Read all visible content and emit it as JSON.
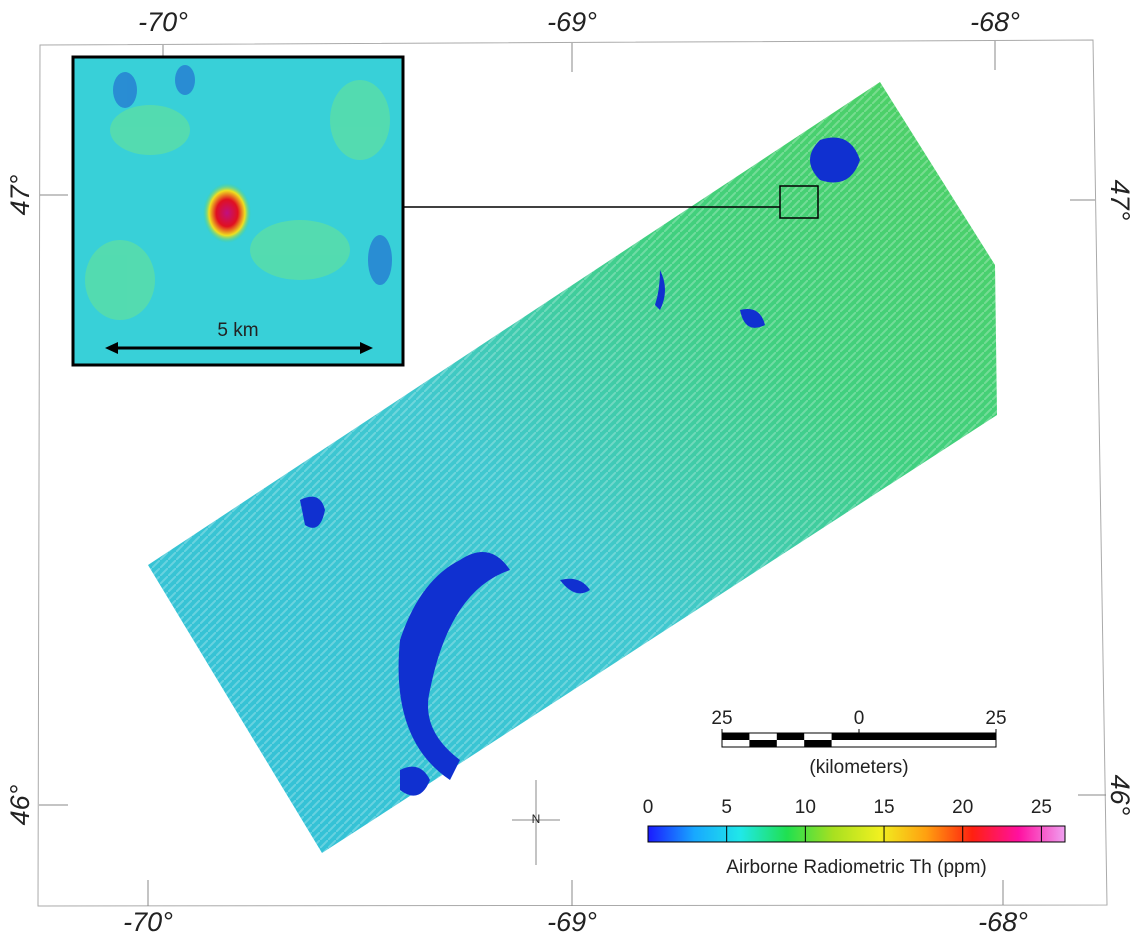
{
  "map": {
    "lon_labels_top": [
      "-70°",
      "-69°",
      "-68°"
    ],
    "lon_labels_bottom": [
      "-70°",
      "-69°",
      "-68°"
    ],
    "lat_labels_left": [
      "47°",
      "46°"
    ],
    "lat_labels_right": [
      "47°",
      "46°"
    ],
    "inset": {
      "scale_label": "5 km"
    },
    "north_label": "N",
    "scale_bar": {
      "ticks": [
        {
          "value": -25,
          "label": "25"
        },
        0,
        25
      ],
      "range": [
        -25,
        25
      ],
      "unit": "(kilometers)"
    },
    "colorbar": {
      "title": "Airborne Radiometric Th (ppm)",
      "ticks": [
        0,
        5,
        10,
        15,
        20,
        25
      ],
      "range": [
        0,
        26.5
      ],
      "colors": [
        "#1a1aff",
        "#18a8ff",
        "#20e8e8",
        "#20e050",
        "#a8e020",
        "#f0f020",
        "#ffa010",
        "#ff2010",
        "#ff10a0",
        "#f0a0f0"
      ]
    }
  }
}
